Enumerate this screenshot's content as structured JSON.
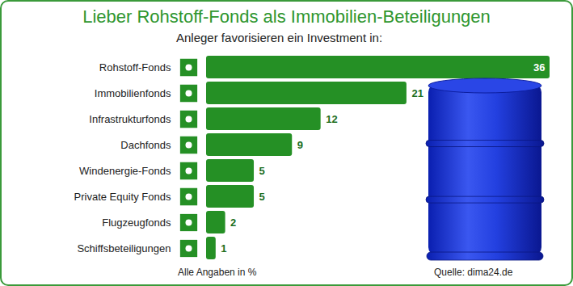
{
  "chart_data": {
    "type": "bar",
    "orientation": "horizontal",
    "title": "Lieber Rohstoff-Fonds als Immobilien-Beteiligungen",
    "subtitle": "Anleger favorisieren ein Investment in:",
    "categories": [
      "Rohstoff-Fonds",
      "Immobilienfonds",
      "Infrastrukturfonds",
      "Dachfonds",
      "Windenergie-Fonds",
      "Private Equity Fonds",
      "Flugzeugfonds",
      "Schiffsbeteiligungen"
    ],
    "values": [
      36,
      21,
      12,
      9,
      5,
      5,
      2,
      1
    ],
    "color": "#259025",
    "xlim": [
      0,
      36
    ],
    "data_labels": true,
    "tick_labels": "y",
    "grid": false,
    "caption": "Alle Angaben in %",
    "source": "Quelle: dima24.de"
  }
}
